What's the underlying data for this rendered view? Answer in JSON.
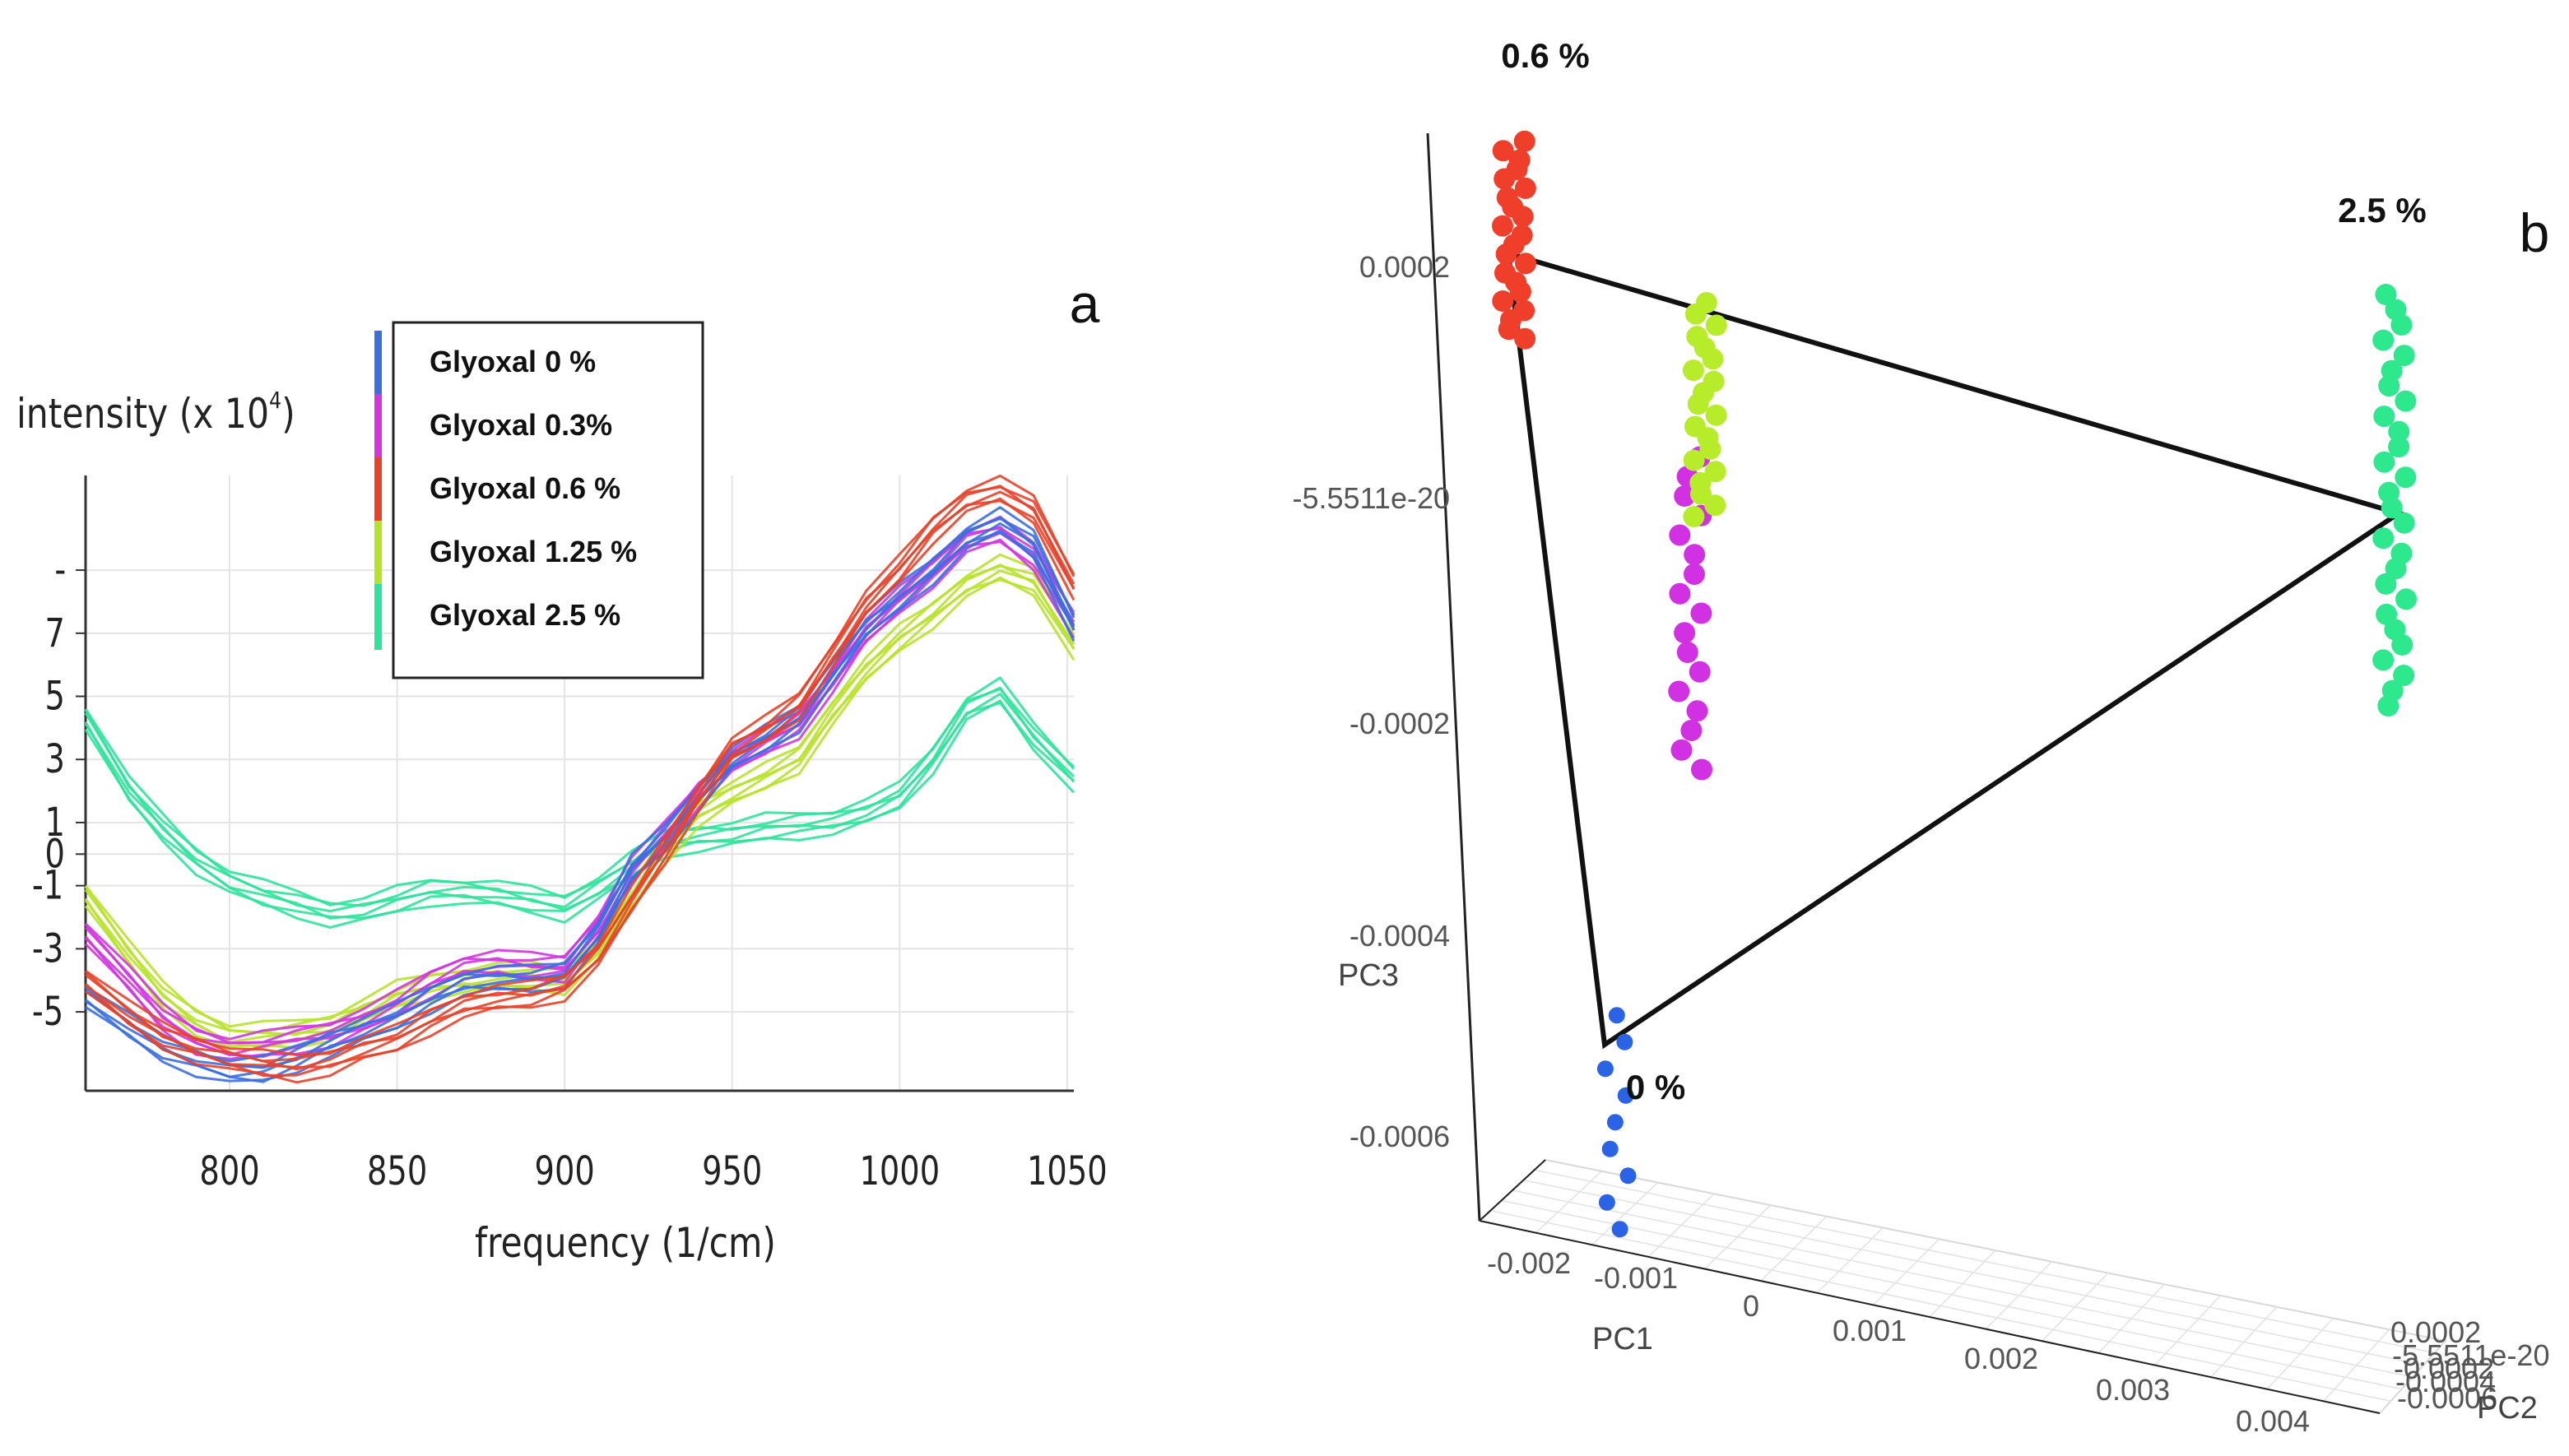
{
  "chart_data": [
    {
      "type": "line",
      "panel_label": "a",
      "ylabel": "intensity (x 10",
      "ylabel_exp": "4",
      "ylabel_close": ")",
      "xlabel": "frequency (1/cm)",
      "xlim": [
        757,
        1052
      ],
      "ylim": [
        -7.5,
        12
      ],
      "x_ticks": [
        "800",
        "850",
        "900",
        "950",
        "1000",
        "1050"
      ],
      "y_ticks": [
        "-",
        "7",
        "5",
        "3",
        "1",
        "0",
        "-1",
        "-3",
        "-5"
      ],
      "x": [
        757,
        770,
        780,
        790,
        800,
        810,
        820,
        830,
        840,
        850,
        860,
        870,
        880,
        890,
        900,
        910,
        920,
        930,
        940,
        950,
        960,
        970,
        980,
        990,
        1000,
        1010,
        1020,
        1030,
        1040,
        1052
      ],
      "series": [
        {
          "name": "Glyoxal 0 %",
          "color": "#3b6fe0",
          "values": [
            -4.5,
            -5.5,
            -6.2,
            -6.6,
            -6.9,
            -6.9,
            -6.5,
            -6.0,
            -5.6,
            -5.2,
            -4.6,
            -4.1,
            -4.0,
            -4.0,
            -3.8,
            -2.5,
            -0.5,
            0.5,
            1.8,
            3.0,
            3.6,
            4.3,
            5.8,
            7.2,
            8.1,
            9.0,
            10.0,
            10.5,
            9.8,
            7.2
          ]
        },
        {
          "name": "Glyoxal 0.3%",
          "color": "#d236e0",
          "values": [
            -2.5,
            -4.0,
            -5.2,
            -5.9,
            -6.2,
            -6.1,
            -5.9,
            -5.7,
            -5.3,
            -4.8,
            -4.1,
            -3.6,
            -3.5,
            -3.6,
            -3.6,
            -2.3,
            -0.6,
            0.6,
            1.9,
            2.9,
            3.5,
            4.1,
            5.5,
            7.0,
            8.0,
            8.9,
            9.9,
            10.2,
            9.4,
            7.3
          ]
        },
        {
          "name": "Glyoxal 0.6 %",
          "color": "#e8432a",
          "values": [
            -4.0,
            -5.1,
            -5.8,
            -6.2,
            -6.5,
            -6.7,
            -6.8,
            -6.6,
            -6.2,
            -5.9,
            -5.3,
            -4.8,
            -4.6,
            -4.5,
            -4.2,
            -3.2,
            -1.5,
            0.1,
            1.8,
            3.3,
            3.9,
            4.7,
            6.3,
            7.9,
            9.0,
            10.3,
            11.2,
            11.5,
            10.9,
            8.5
          ]
        },
        {
          "name": "Glyoxal 1.25 %",
          "color": "#b8e22a",
          "values": [
            -1.3,
            -3.2,
            -4.5,
            -5.3,
            -5.8,
            -5.8,
            -5.7,
            -5.5,
            -5.0,
            -4.5,
            -4.2,
            -4.0,
            -3.9,
            -3.9,
            -4.0,
            -3.0,
            -1.4,
            0.1,
            1.3,
            1.9,
            2.4,
            3.0,
            4.5,
            5.8,
            6.8,
            7.6,
            8.5,
            9.0,
            8.6,
            6.6
          ]
        },
        {
          "name": "Glyoxal 2.5 %",
          "color": "#2ee39b",
          "values": [
            4.3,
            2.0,
            0.8,
            -0.2,
            -0.9,
            -1.3,
            -1.6,
            -1.9,
            -1.8,
            -1.5,
            -1.2,
            -1.2,
            -1.3,
            -1.5,
            -1.7,
            -1.1,
            -0.4,
            0.3,
            0.5,
            0.6,
            0.8,
            0.9,
            1.0,
            1.3,
            1.8,
            3.0,
            4.6,
            5.1,
            3.7,
            2.4
          ]
        }
      ]
    },
    {
      "type": "scatter3d",
      "panel_label": "b",
      "axes": {
        "PC1": {
          "label": "PC1",
          "ticks": [
            "-0.002",
            "-0.001",
            "0",
            "0.001",
            "0.002",
            "0.003",
            "0.004"
          ]
        },
        "PC2": {
          "label": "PC2",
          "ticks": [
            "0.0002",
            "-5.5511e-20",
            "-0.0002",
            "-0.0004",
            "-0.0006"
          ]
        },
        "PC3": {
          "label": "PC3",
          "ticks": [
            "0.0002",
            "-5.5511e-20",
            "-0.0002",
            "-0.0004",
            "-0.0006"
          ]
        }
      },
      "groups": [
        {
          "name": "0 %",
          "label": "0 %",
          "color": "#2b63e6",
          "pc1": -0.0014,
          "pc3": -0.00055,
          "point_count": 9
        },
        {
          "name": "0.3 %",
          "label": "",
          "color": "#d231e3",
          "pc1": -0.0009,
          "pc3": -0.0001,
          "point_count": 17
        },
        {
          "name": "0.6 %",
          "label": "0.6 %",
          "color": "#ef3e2a",
          "pc1": -0.0021,
          "pc3": 0.00023,
          "point_count": 22
        },
        {
          "name": "1.25 %",
          "label": "",
          "color": "#b7ec2a",
          "pc1": -0.0008,
          "pc3": 8e-05,
          "point_count": 20
        },
        {
          "name": "2.5 %",
          "label": "2.5 %",
          "color": "#2ee88e",
          "pc1": 0.0039,
          "pc3": 0.0,
          "point_count": 28
        }
      ]
    }
  ]
}
